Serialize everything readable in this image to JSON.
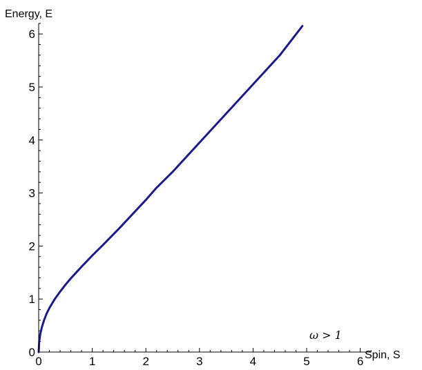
{
  "chart_data": {
    "type": "line",
    "title": "",
    "xlabel": "Spin, S",
    "ylabel": "Energy, E",
    "xlim": [
      0,
      6.2
    ],
    "ylim": [
      0,
      6.2
    ],
    "x_ticks": [
      0,
      1,
      2,
      3,
      4,
      5,
      6
    ],
    "y_ticks": [
      0,
      1,
      2,
      3,
      4,
      5,
      6
    ],
    "x_tick_labels": [
      "0",
      "1",
      "2",
      "3",
      "4",
      "5",
      "6"
    ],
    "y_tick_labels": [
      "0",
      "1",
      "2",
      "3",
      "4",
      "5",
      "6"
    ],
    "grid": false,
    "legend": "none",
    "annotation": "ω > 1",
    "series": [
      {
        "color": "#1a1a8c",
        "x": [
          0,
          0.01,
          0.03,
          0.06,
          0.1,
          0.15,
          0.2,
          0.3,
          0.4,
          0.5,
          0.6,
          0.7,
          0.8,
          1.0,
          1.2,
          1.5,
          2.0,
          2.2,
          2.5,
          3.0,
          3.5,
          4.0,
          4.5,
          4.92
        ],
        "y": [
          0,
          0.2,
          0.34,
          0.47,
          0.6,
          0.73,
          0.83,
          1.0,
          1.14,
          1.27,
          1.39,
          1.5,
          1.61,
          1.82,
          2.02,
          2.33,
          2.87,
          3.1,
          3.4,
          3.95,
          4.5,
          5.05,
          5.6,
          6.15
        ]
      }
    ]
  }
}
